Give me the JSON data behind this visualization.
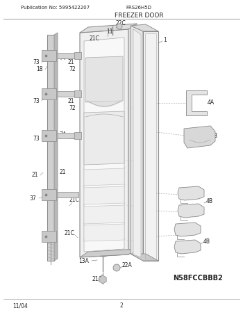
{
  "pub_no": "Publication No: 5995422207",
  "model": "FRS26H5D",
  "section": "FREEZER DOOR",
  "diagram_code": "N58FCCBBB2",
  "footer_left": "11/04",
  "footer_center": "2",
  "bg_color": "#ffffff",
  "text_color": "#222222",
  "gray_light": "#d8d8d8",
  "gray_mid": "#b0b0b0",
  "gray_dark": "#888888",
  "gray_fill": "#e8e8e8",
  "white_fill": "#f5f5f5"
}
